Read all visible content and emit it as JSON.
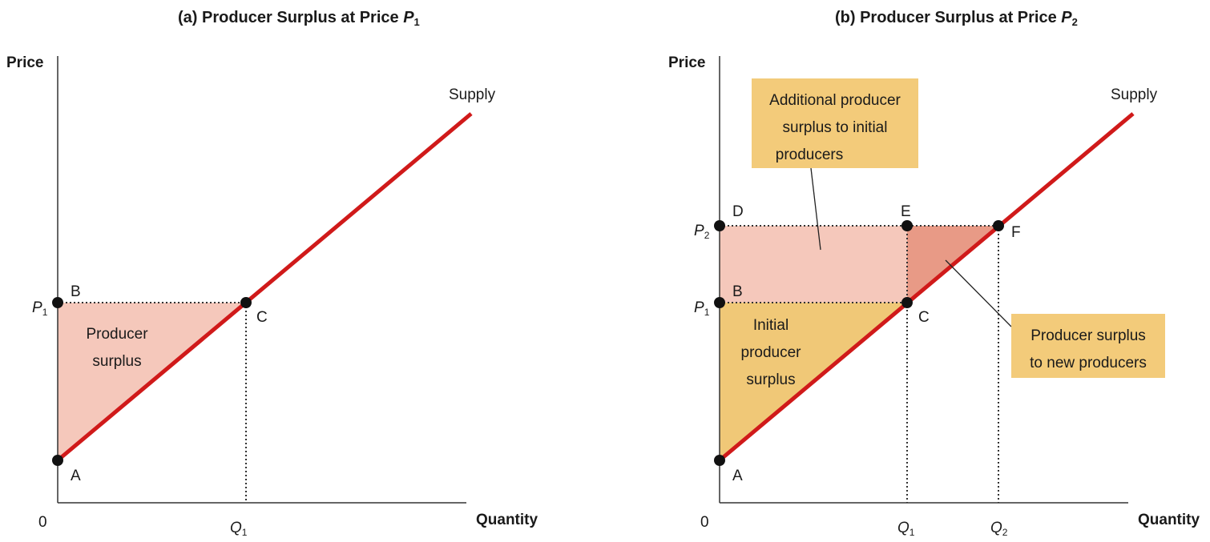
{
  "panel_a": {
    "title": "(a) Producer Surplus at Price ",
    "title_var": "P",
    "title_sub": "1",
    "y_axis_label": "Price",
    "x_axis_label": "Quantity",
    "origin_label": "0",
    "curve_label": "Supply",
    "price_var": "P",
    "price_sub": "1",
    "qty_var": "Q",
    "qty_sub": "1",
    "point_a": "A",
    "point_b": "B",
    "point_c": "C",
    "area_label_line1": "Producer",
    "area_label_line2": "surplus"
  },
  "panel_b": {
    "title": "(b) Producer Surplus at Price ",
    "title_var": "P",
    "title_sub": "2",
    "y_axis_label": "Price",
    "x_axis_label": "Quantity",
    "origin_label": "0",
    "curve_label": "Supply",
    "p1_var": "P",
    "p1_sub": "1",
    "p2_var": "P",
    "p2_sub": "2",
    "q1_var": "Q",
    "q1_sub": "1",
    "q2_var": "Q",
    "q2_sub": "2",
    "point_a": "A",
    "point_b": "B",
    "point_c": "C",
    "point_d": "D",
    "point_e": "E",
    "point_f": "F",
    "initial_line1": "Initial",
    "initial_line2": "producer",
    "initial_line3": "surplus",
    "additional_line1": "Additional producer",
    "additional_line2": "surplus to initial",
    "additional_line3": "producers",
    "new_line1": "Producer surplus",
    "new_line2": "to new producers"
  },
  "colors": {
    "supply_curve": "#d01a1a",
    "surplus_fill": "#f5c8bb",
    "initial_fill": "#f0c877",
    "new_fill": "#e89a86",
    "callout_fill": "#f3cb7a",
    "axis": "#333333"
  }
}
